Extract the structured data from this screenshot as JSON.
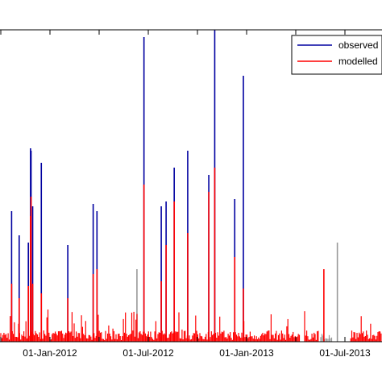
{
  "chart_data": {
    "type": "line",
    "title": "",
    "xlabel": "",
    "ylabel": "",
    "x_ticks": [
      "01-Jan-2012",
      "01-Jul-2012",
      "01-Jan-2013",
      "01-Jul-2013"
    ],
    "legend": {
      "placement": "top-right",
      "entries": [
        "observed",
        "modelled"
      ]
    },
    "colors": {
      "observed": "#0000a0",
      "modelled": "#ff0000",
      "gap": "#999999",
      "axes": "#000000"
    },
    "grid": false,
    "series": [
      {
        "name": "observed",
        "points": [
          [
            "2011-10-22",
            0.54
          ],
          [
            "2011-11-05",
            0.44
          ],
          [
            "2011-11-22",
            0.41
          ],
          [
            "2011-11-26",
            0.8
          ],
          [
            "2011-11-27",
            0.79
          ],
          [
            "2011-11-30",
            0.56
          ],
          [
            "2011-12-16",
            0.74
          ],
          [
            "2012-02-03",
            0.4
          ],
          [
            "2012-03-21",
            0.57
          ],
          [
            "2012-03-28",
            0.54
          ],
          [
            "2012-06-23",
            1.26
          ],
          [
            "2012-07-25",
            0.56
          ],
          [
            "2012-08-03",
            0.58
          ],
          [
            "2012-08-18",
            0.72
          ],
          [
            "2012-09-12",
            0.79
          ],
          [
            "2012-10-21",
            0.69
          ],
          [
            "2012-11-01",
            1.29
          ],
          [
            "2012-12-08",
            0.59
          ],
          [
            "2012-12-24",
            1.1
          ]
        ]
      },
      {
        "name": "modelled",
        "points": [
          [
            "2011-10-22",
            0.24
          ],
          [
            "2011-11-05",
            0.18
          ],
          [
            "2011-11-22",
            0.23
          ],
          [
            "2011-11-26",
            0.52
          ],
          [
            "2011-11-27",
            0.6
          ],
          [
            "2011-11-30",
            0.24
          ],
          [
            "2011-12-16",
            0.2
          ],
          [
            "2012-02-03",
            0.18
          ],
          [
            "2012-03-21",
            0.28
          ],
          [
            "2012-03-28",
            0.3
          ],
          [
            "2012-06-23",
            0.65
          ],
          [
            "2012-07-25",
            0.25
          ],
          [
            "2012-08-03",
            0.4
          ],
          [
            "2012-08-18",
            0.58
          ],
          [
            "2012-09-12",
            0.45
          ],
          [
            "2012-10-21",
            0.62
          ],
          [
            "2012-11-01",
            0.72
          ],
          [
            "2012-12-08",
            0.35
          ],
          [
            "2012-12-24",
            0.22
          ],
          [
            "2013-05-22",
            0.3
          ],
          [
            "2013-09-25",
            0.5
          ],
          [
            "2013-10-02",
            0.9
          ]
        ]
      },
      {
        "name": "",
        "points": [
          [
            "2012-06-10",
            0.3
          ],
          [
            "2013-06-16",
            0.41
          ],
          [
            "2013-09-10",
            0.77
          ],
          [
            "2013-09-17",
            0.7
          ]
        ]
      }
    ]
  }
}
